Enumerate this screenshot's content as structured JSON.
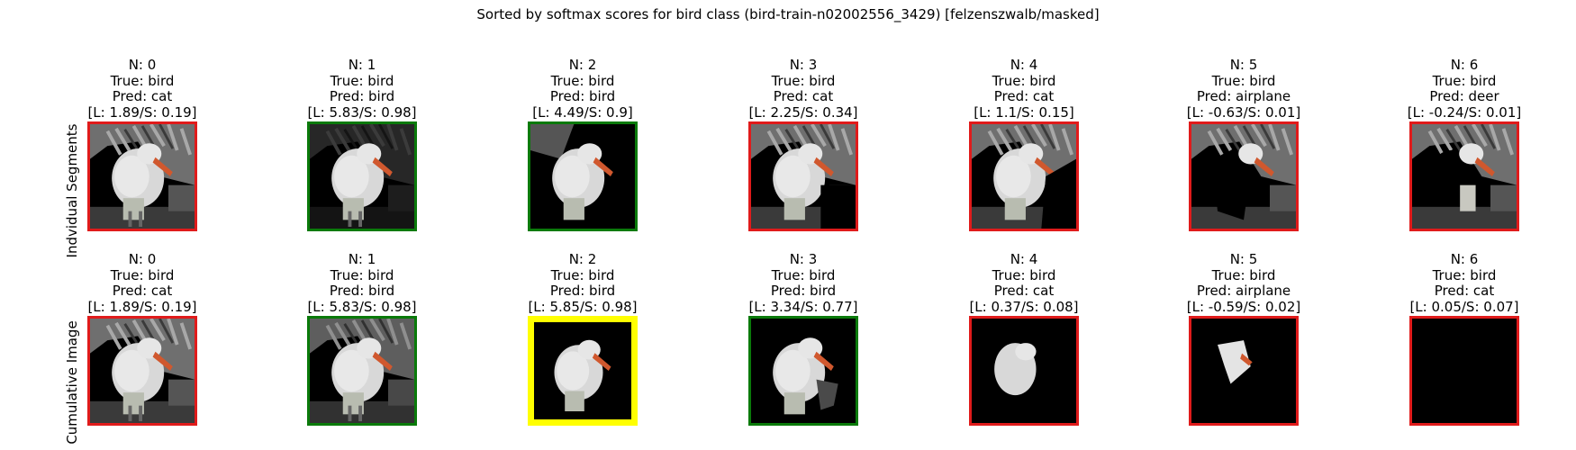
{
  "title": "Sorted by softmax scores for bird class (bird-train-n02002556_3429) [felzenszwalb/masked]",
  "colors": {
    "incorrect": "#e01b1b",
    "correct": "#0a7a0a",
    "best": "#ffff00"
  },
  "chart_data": {
    "type": "image-grid",
    "title": "Sorted by softmax scores for bird class (bird-train-n02002556_3429) [felzenszwalb/masked]",
    "rows": [
      {
        "label": "Indvidual Segments",
        "panels": [
          {
            "n": "N: 0",
            "true": "True: bird",
            "pred": "Pred: cat",
            "score": "[L: 1.89/S: 0.19]",
            "status": "incorrect",
            "segment": "full"
          },
          {
            "n": "N: 1",
            "true": "True: bird",
            "pred": "Pred: bird",
            "score": "[L: 5.83/S: 0.98]",
            "status": "correct",
            "segment": "bird-body"
          },
          {
            "n": "N: 2",
            "true": "True: bird",
            "pred": "Pred: bird",
            "score": "[L: 4.49/S: 0.9]",
            "status": "correct",
            "segment": "bird-head"
          },
          {
            "n": "N: 3",
            "true": "True: bird",
            "pred": "Pred: cat",
            "score": "[L: 2.25/S: 0.34]",
            "status": "incorrect",
            "segment": "lower-right-bg"
          },
          {
            "n": "N: 4",
            "true": "True: bird",
            "pred": "Pred: cat",
            "score": "[L: 1.1/S: 0.15]",
            "status": "incorrect",
            "segment": "right-bg"
          },
          {
            "n": "N: 5",
            "true": "True: bird",
            "pred": "Pred: airplane",
            "score": "[L: -0.63/S: 0.01]",
            "status": "incorrect",
            "segment": "chest"
          },
          {
            "n": "N: 6",
            "true": "True: bird",
            "pred": "Pred: deer",
            "score": "[L: -0.24/S: 0.01]",
            "status": "incorrect",
            "segment": "neck"
          }
        ]
      },
      {
        "label": "Cumulative Image",
        "panels": [
          {
            "n": "N: 0",
            "true": "True: bird",
            "pred": "Pred: cat",
            "score": "[L: 1.89/S: 0.19]",
            "status": "incorrect",
            "segment": "full"
          },
          {
            "n": "N: 1",
            "true": "True: bird",
            "pred": "Pred: bird",
            "score": "[L: 5.83/S: 0.98]",
            "status": "correct",
            "segment": "full-dim"
          },
          {
            "n": "N: 2",
            "true": "True: bird",
            "pred": "Pred: bird",
            "score": "[L: 5.85/S: 0.98]",
            "status": "best",
            "segment": "bird-only"
          },
          {
            "n": "N: 3",
            "true": "True: bird",
            "pred": "Pred: bird",
            "score": "[L: 3.34/S: 0.77]",
            "status": "correct",
            "segment": "bird-plus"
          },
          {
            "n": "N: 4",
            "true": "True: bird",
            "pred": "Pred: cat",
            "score": "[L: 0.37/S: 0.08]",
            "status": "incorrect",
            "segment": "bird-small"
          },
          {
            "n": "N: 5",
            "true": "True: bird",
            "pred": "Pred: airplane",
            "score": "[L: -0.59/S: 0.02]",
            "status": "incorrect",
            "segment": "head-only"
          },
          {
            "n": "N: 6",
            "true": "True: bird",
            "pred": "Pred: cat",
            "score": "[L: 0.05/S: 0.07]",
            "status": "incorrect",
            "segment": "empty"
          }
        ]
      }
    ]
  }
}
